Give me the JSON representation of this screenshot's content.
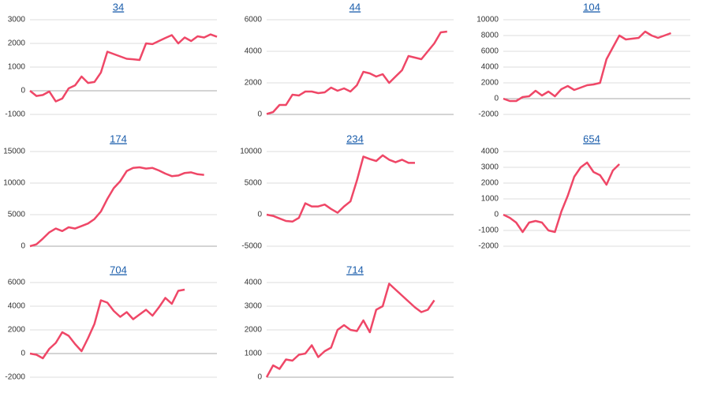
{
  "chart_data": [
    {
      "type": "line",
      "title": "34",
      "color": "#ef4767",
      "ylim": [
        -1000,
        3000
      ],
      "yticks": [
        -1000,
        0,
        1000,
        2000,
        3000
      ],
      "grid": true,
      "series": [
        {
          "values": [
            0,
            -220,
            -180,
            -30,
            -450,
            -330,
            100,
            230,
            600,
            330,
            370,
            770,
            1650,
            1550,
            1450,
            1350,
            1330,
            1300,
            2000,
            1970,
            2100,
            2230,
            2350,
            2000,
            2250,
            2100,
            2300,
            2250,
            2380,
            2280
          ]
        }
      ]
    },
    {
      "type": "line",
      "title": "44",
      "color": "#ef4767",
      "ylim": [
        0,
        6000
      ],
      "yticks": [
        0,
        2000,
        4000,
        6000
      ],
      "grid": true,
      "series": [
        {
          "values": [
            30,
            150,
            600,
            600,
            1250,
            1200,
            1450,
            1450,
            1350,
            1400,
            1700,
            1500,
            1650,
            1450,
            1850,
            2700,
            2600,
            2400,
            2550,
            2000,
            2400,
            2800,
            3700,
            3600,
            3500,
            4000,
            4500,
            5200,
            5250
          ]
        }
      ]
    },
    {
      "type": "line",
      "title": "104",
      "color": "#ef4767",
      "ylim": [
        -2000,
        10000
      ],
      "yticks": [
        -2000,
        0,
        2000,
        4000,
        6000,
        8000,
        10000
      ],
      "grid": true,
      "series": [
        {
          "values": [
            0,
            -300,
            -300,
            200,
            300,
            1000,
            400,
            900,
            300,
            1200,
            1600,
            1100,
            1400,
            1700,
            1800,
            2000,
            5000,
            6500,
            8000,
            7500,
            7600,
            7700,
            8500,
            8000,
            7700,
            8000,
            8300
          ]
        }
      ]
    },
    {
      "type": "line",
      "title": "174",
      "color": "#ef4767",
      "ylim": [
        0,
        15000
      ],
      "yticks": [
        0,
        5000,
        10000,
        15000
      ],
      "grid": true,
      "series": [
        {
          "values": [
            0,
            300,
            1200,
            2200,
            2800,
            2400,
            3000,
            2800,
            3200,
            3600,
            4300,
            5500,
            7500,
            9200,
            10300,
            11900,
            12400,
            12500,
            12300,
            12400,
            12000,
            11500,
            11100,
            11200,
            11600,
            11700,
            11400,
            11300
          ]
        }
      ]
    },
    {
      "type": "line",
      "title": "234",
      "color": "#ef4767",
      "ylim": [
        -5000,
        10000
      ],
      "yticks": [
        -5000,
        0,
        5000,
        10000
      ],
      "grid": true,
      "series": [
        {
          "values": [
            0,
            -200,
            -600,
            -1000,
            -1100,
            -500,
            1800,
            1300,
            1300,
            1600,
            900,
            300,
            1300,
            2100,
            5400,
            9200,
            8800,
            8500,
            9400,
            8700,
            8300,
            8700,
            8200,
            8200
          ]
        }
      ]
    },
    {
      "type": "line",
      "title": "654",
      "color": "#ef4767",
      "ylim": [
        -2000,
        4000
      ],
      "yticks": [
        -2000,
        -1000,
        0,
        1000,
        2000,
        3000,
        4000
      ],
      "grid": true,
      "series": [
        {
          "values": [
            0,
            -200,
            -500,
            -1100,
            -500,
            -400,
            -500,
            -1000,
            -1100,
            200,
            1200,
            2400,
            3000,
            3300,
            2700,
            2500,
            1900,
            2800,
            3200
          ]
        }
      ]
    },
    {
      "type": "line",
      "title": "704",
      "color": "#ef4767",
      "ylim": [
        -2000,
        6000
      ],
      "yticks": [
        -2000,
        0,
        2000,
        4000,
        6000
      ],
      "grid": true,
      "series": [
        {
          "values": [
            0,
            -100,
            -400,
            400,
            900,
            1800,
            1500,
            800,
            200,
            1300,
            2500,
            4500,
            4300,
            3600,
            3100,
            3500,
            2900,
            3300,
            3700,
            3200,
            3900,
            4700,
            4200,
            5300,
            5400
          ]
        }
      ]
    },
    {
      "type": "line",
      "title": "714",
      "color": "#ef4767",
      "ylim": [
        0,
        4000
      ],
      "yticks": [
        0,
        1000,
        2000,
        3000,
        4000
      ],
      "grid": true,
      "series": [
        {
          "values": [
            0,
            500,
            350,
            750,
            700,
            950,
            1000,
            1350,
            850,
            1100,
            1250,
            2000,
            2200,
            2000,
            1950,
            2400,
            1900,
            2850,
            3000,
            3950,
            3700,
            3450,
            3200,
            2950,
            2750,
            2850,
            3250
          ]
        }
      ]
    }
  ]
}
